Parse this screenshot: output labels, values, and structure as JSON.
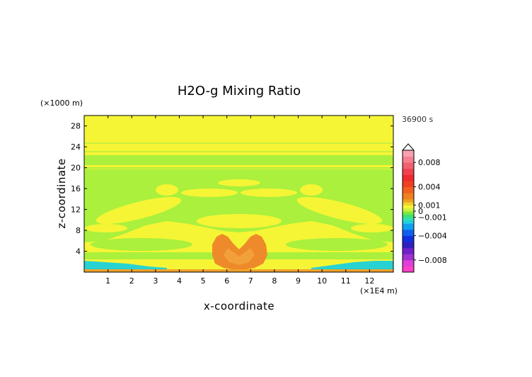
{
  "chart_data": {
    "type": "heatmap",
    "title": "H2O-g Mixing Ratio",
    "xlabel": "x-coordinate",
    "ylabel": "z-coordinate",
    "x_unit": "(×1E4 m)",
    "y_unit": "(×1000 m)",
    "time_label": "36900 s",
    "xlim": [
      0,
      13
    ],
    "ylim": [
      0,
      30
    ],
    "x_ticks": [
      "1",
      "2",
      "3",
      "4",
      "5",
      "6",
      "7",
      "8",
      "9",
      "10",
      "11",
      "12"
    ],
    "y_ticks": [
      "4",
      "8",
      "12",
      "16",
      "20",
      "24",
      "28"
    ],
    "colorbar": {
      "labels": [
        "0.008",
        "0.004",
        "0.001",
        "0",
        "−0.001",
        "−0.004",
        "−0.008"
      ],
      "label_values": [
        0.008,
        0.004,
        0.001,
        0,
        -0.001,
        -0.004,
        -0.008
      ],
      "vmin": -0.01,
      "vmax": 0.01
    },
    "regions": [
      {
        "name": "background",
        "level": 0.0005,
        "color": "#f5f535"
      },
      {
        "name": "mid-green-layer",
        "level": 0.0,
        "color": "#aaf03c"
      },
      {
        "name": "center-plume",
        "level": 0.003,
        "color": "#ee8a2a"
      },
      {
        "name": "surface-negative",
        "level": -0.002,
        "color": "#28d2d2"
      },
      {
        "name": "surface-positive",
        "level": 0.002,
        "color": "#f2a22a"
      }
    ]
  }
}
